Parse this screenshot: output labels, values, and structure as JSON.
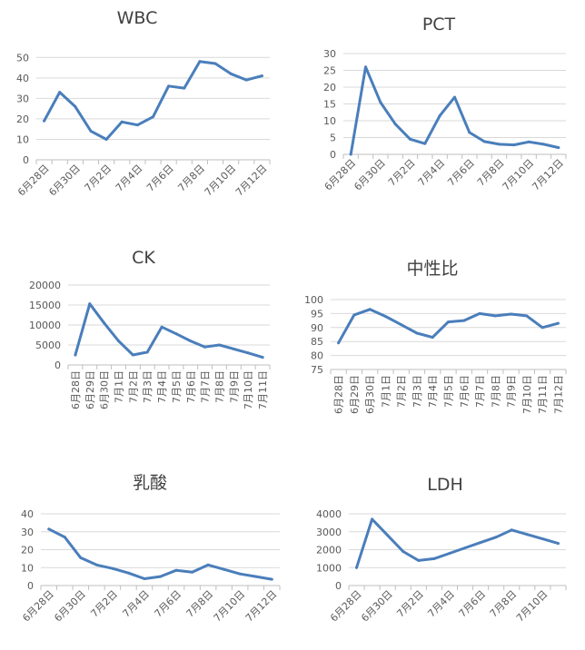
{
  "chart_data": [
    {
      "type": "line",
      "title": "WBC",
      "x": [
        "6月28日",
        "6月29日",
        "6月30日",
        "7月1日",
        "7月2日",
        "7月3日",
        "7月4日",
        "7月5日",
        "7月6日",
        "7月7日",
        "7月8日",
        "7月9日",
        "7月10日",
        "7月11日",
        "7月12日"
      ],
      "values": [
        19,
        33,
        26,
        14,
        10,
        18.5,
        17,
        21,
        36,
        35,
        48,
        47,
        42,
        39,
        41
      ],
      "xticks": [
        "6月28日",
        "6月30日",
        "7月2日",
        "7月4日",
        "7月6日",
        "7月8日",
        "7月10日",
        "7月12日"
      ],
      "yticks": [
        0,
        10,
        20,
        30,
        40,
        50
      ],
      "ylim": [
        0,
        55
      ],
      "grid": true,
      "color": "#4a7ebb"
    },
    {
      "type": "line",
      "title": "PCT",
      "x": [
        "6月28日",
        "6月29日",
        "6月30日",
        "7月1日",
        "7月2日",
        "7月3日",
        "7月4日",
        "7月5日",
        "7月6日",
        "7月7日",
        "7月8日",
        "7月9日",
        "7月10日",
        "7月11日",
        "7月12日"
      ],
      "values": [
        0,
        26,
        15.5,
        9,
        4.5,
        3.2,
        11.5,
        17,
        6.5,
        3.8,
        3,
        2.8,
        3.7,
        3,
        2
      ],
      "xticks": [
        "6月28日",
        "6月30日",
        "7月2日",
        "7月4日",
        "7月6日",
        "7月8日",
        "7月10日",
        "7月12日"
      ],
      "yticks": [
        0,
        5,
        10,
        15,
        20,
        25,
        30
      ],
      "ylim": [
        0,
        30
      ],
      "grid": true,
      "color": "#4a7ebb"
    },
    {
      "type": "line",
      "title": "CK",
      "x": [
        "6月28日",
        "6月29日",
        "6月30日",
        "7月1日",
        "7月2日",
        "7月3日",
        "7月4日",
        "7月5日",
        "7月6日",
        "7月7日",
        "7月8日",
        "7月9日",
        "7月10日",
        "7月11日"
      ],
      "values": [
        2500,
        15300,
        10500,
        6000,
        2500,
        3200,
        9500,
        7800,
        6000,
        4500,
        5000,
        4000,
        3000,
        1900
      ],
      "xticks": [
        "6月28日",
        "6月29日",
        "6月30日",
        "7月1日",
        "7月2日",
        "7月3日",
        "7月4日",
        "7月5日",
        "7月6日",
        "7月7日",
        "7月8日",
        "7月9日",
        "7月10日",
        "7月11日"
      ],
      "yticks": [
        0,
        5000,
        10000,
        15000,
        20000
      ],
      "ylim": [
        0,
        20000
      ],
      "grid": true,
      "color": "#4a7ebb"
    },
    {
      "type": "line",
      "title": "中性比",
      "x": [
        "6月28日",
        "6月29日",
        "6月30日",
        "7月1日",
        "7月2日",
        "7月3日",
        "7月4日",
        "7月5日",
        "7月6日",
        "7月7日",
        "7月8日",
        "7月9日",
        "7月10日",
        "7月11日",
        "7月12日"
      ],
      "values": [
        84.5,
        94.5,
        96.5,
        94,
        91,
        88,
        86.5,
        92,
        92.5,
        95,
        94.2,
        94.8,
        94.2,
        90,
        91.5
      ],
      "xticks": [
        "6月28日",
        "6月29日",
        "6月30日",
        "7月1日",
        "7月2日",
        "7月3日",
        "7月4日",
        "7月5日",
        "7月6日",
        "7月7日",
        "7月8日",
        "7月9日",
        "7月10日",
        "7月11日",
        "7月12日"
      ],
      "yticks": [
        75,
        80,
        85,
        90,
        95,
        100
      ],
      "ylim": [
        75,
        100
      ],
      "grid": true,
      "color": "#4a7ebb"
    },
    {
      "type": "line",
      "title": "乳酸",
      "x": [
        "6月28日",
        "6月29日",
        "6月30日",
        "7月1日",
        "7月2日",
        "7月3日",
        "7月4日",
        "7月5日",
        "7月6日",
        "7月7日",
        "7月8日",
        "7月9日",
        "7月10日",
        "7月11日",
        "7月12日"
      ],
      "values": [
        31.5,
        27,
        15.5,
        11.5,
        9.5,
        7,
        3.8,
        5,
        8.5,
        7.5,
        11.5,
        9,
        6.5,
        5,
        3.5
      ],
      "xticks": [
        "6月28日",
        "6月30日",
        "7月2日",
        "7月4日",
        "7月6日",
        "7月8日",
        "7月10日",
        "7月12日"
      ],
      "yticks": [
        0,
        10,
        20,
        30,
        40
      ],
      "ylim": [
        0,
        40
      ],
      "grid": true,
      "color": "#4a7ebb"
    },
    {
      "type": "line",
      "title": "LDH",
      "x": [
        "6月28日",
        "6月29日",
        "6月30日",
        "7月1日",
        "7月2日",
        "7月3日",
        "7月4日",
        "7月5日",
        "7月6日",
        "7月7日",
        "7月8日",
        "7月9日",
        "7月10日",
        "7月11日"
      ],
      "values": [
        1000,
        3700,
        2800,
        1900,
        1400,
        1500,
        1800,
        2100,
        2400,
        2700,
        3100,
        2850,
        2600,
        2350
      ],
      "xticks": [
        "6月28日",
        "6月30日",
        "7月2日",
        "7月4日",
        "7月6日",
        "7月8日",
        "7月10日"
      ],
      "yticks": [
        0,
        1000,
        2000,
        3000,
        4000
      ],
      "ylim": [
        0,
        4000
      ],
      "grid": true,
      "color": "#4a7ebb"
    }
  ]
}
